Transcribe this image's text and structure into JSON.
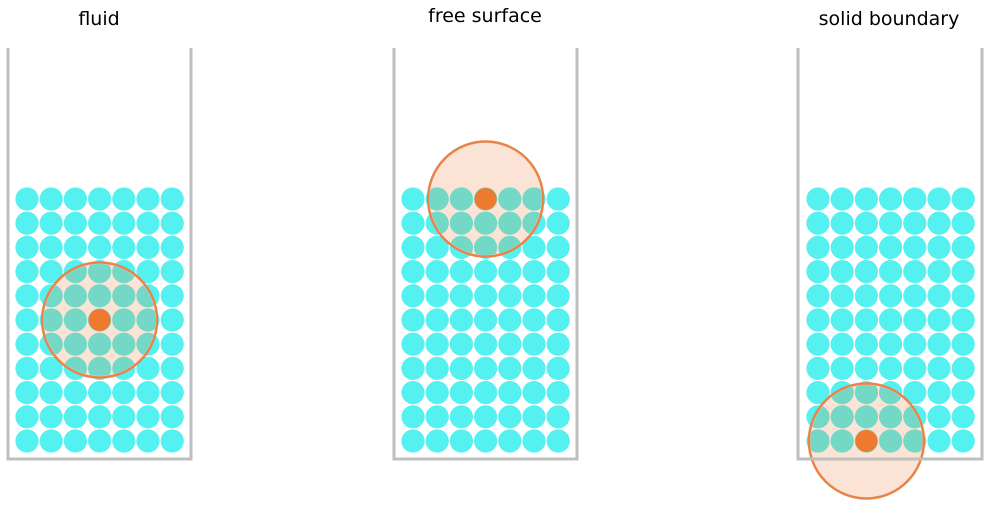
{
  "panels": [
    {
      "id": "fluid",
      "title": "fluid",
      "particle_rows": 11,
      "particle_cols": 7,
      "kernel_center": {
        "row": 5,
        "col": 3
      }
    },
    {
      "id": "free-surface",
      "title": "free surface",
      "particle_rows": 11,
      "particle_cols": 7,
      "kernel_center": {
        "row": 0,
        "col": 3
      }
    },
    {
      "id": "solid-boundary",
      "title": "solid boundary",
      "particle_rows": 11,
      "particle_cols": 7,
      "kernel_center": {
        "row": 10,
        "col": 2
      }
    }
  ],
  "colors": {
    "particle": "#55F0F0",
    "particle_in_kernel": "#74D8C6",
    "kernel_fill": "#FBE1D0",
    "kernel_stroke": "#E8844A",
    "center_particle": "#EE7A30",
    "container_wall": "#BFBFBF"
  }
}
